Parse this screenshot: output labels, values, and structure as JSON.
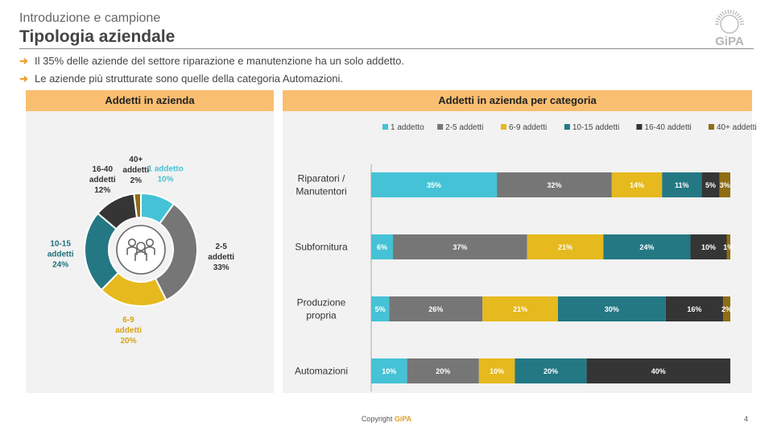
{
  "header": {
    "subtitle": "Introduzione e campione",
    "title": "Tipologia aziendale",
    "logo_text": "GiPA"
  },
  "bullets": [
    "Il 35% delle aziende del settore riparazione e manutenzione ha un solo addetto.",
    "Le aziende più strutturate sono quelle della categoria Automazioni."
  ],
  "footer": {
    "prefix": "Copyright ",
    "brand": "GiPA",
    "page": "4"
  },
  "colors": {
    "1 addetto": "#45c2d6",
    "2-5 addetti": "#767676",
    "6-9 addetti": "#e6b91e",
    "10-15 addetti": "#237884",
    "16-40 addetti": "#353535",
    "40+ addetti": "#8f6d15",
    "accent": "#f9be70"
  },
  "chart_data": [
    {
      "type": "pie",
      "title": "Addetti in azienda",
      "center_icon": "people-group-icon",
      "slices": [
        {
          "label": "1 addetto",
          "value": 10,
          "display": "10%"
        },
        {
          "label": "2-5 addetti",
          "value": 33,
          "display": "33%"
        },
        {
          "label": "6-9 addetti",
          "value": 20,
          "display": "20%"
        },
        {
          "label": "10-15 addetti",
          "value": 24,
          "display": "24%"
        },
        {
          "label": "16-40 addetti",
          "value": 12,
          "display": "12%"
        },
        {
          "label": "40+ addetti",
          "value": 2,
          "display": "2%"
        }
      ]
    },
    {
      "type": "bar",
      "stacked": true,
      "orientation": "horizontal",
      "title": "Addetti in azienda per categoria",
      "legend_position": "top",
      "categories": [
        [
          "Riparatori /",
          "Manutentori"
        ],
        [
          "Subfornitura"
        ],
        [
          "Produzione",
          "propria"
        ],
        [
          "Automazioni"
        ]
      ],
      "series": [
        {
          "name": "1 addetto",
          "values": [
            35,
            6,
            5,
            10
          ]
        },
        {
          "name": "2-5 addetti",
          "values": [
            32,
            37,
            26,
            20
          ]
        },
        {
          "name": "6-9 addetti",
          "values": [
            14,
            21,
            21,
            10
          ]
        },
        {
          "name": "10-15 addetti",
          "values": [
            11,
            24,
            30,
            20
          ]
        },
        {
          "name": "16-40 addetti",
          "values": [
            5,
            10,
            16,
            40
          ]
        },
        {
          "name": "40+ addetti",
          "values": [
            3,
            1,
            2,
            0
          ]
        }
      ]
    }
  ]
}
